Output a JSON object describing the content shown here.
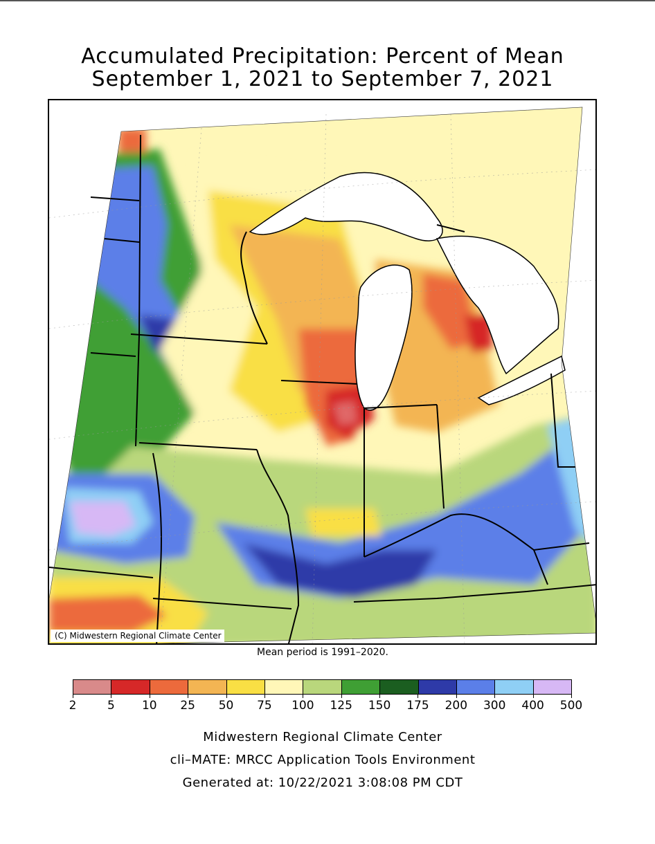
{
  "title_line1": "Accumulated Precipitation: Percent of Mean",
  "title_line2": "September 1, 2021 to September 7, 2021",
  "map": {
    "credit": "(C) Midwestern Regional Climate Center",
    "colors": {
      "water": "#ffffff",
      "lt5": "#e06868",
      "r5_10": "#d62828",
      "r10_25": "#ec6a3c",
      "r25_50": "#f3b553",
      "r50_75": "#f9df44",
      "r75_100": "#fff7b8",
      "r100_125": "#b9d77c",
      "r125_150": "#3f9f34",
      "r150_175": "#1b5e20",
      "r175_200": "#2e3aa8",
      "r200_300": "#5b7fe8",
      "r300_400": "#8fcff5",
      "r400_500": "#d7b8f5"
    }
  },
  "mean_period_note": "Mean period is 1991–2020.",
  "legend": {
    "colors": [
      "#d98a8a",
      "#d62828",
      "#ec6a3c",
      "#f3b553",
      "#f9df44",
      "#fff7b8",
      "#b9d77c",
      "#3f9f34",
      "#1b5e20",
      "#2e3aa8",
      "#5b7fe8",
      "#8fcff5",
      "#d7b8f5"
    ],
    "labels": [
      "2",
      "5",
      "10",
      "25",
      "50",
      "75",
      "100",
      "125",
      "150",
      "175",
      "200",
      "300",
      "400",
      "500"
    ]
  },
  "footer": {
    "line1": "Midwestern Regional Climate Center",
    "line2": "cli–MATE: MRCC Application Tools Environment",
    "line3": "Generated at: 10/22/2021 3:08:08 PM CDT"
  }
}
